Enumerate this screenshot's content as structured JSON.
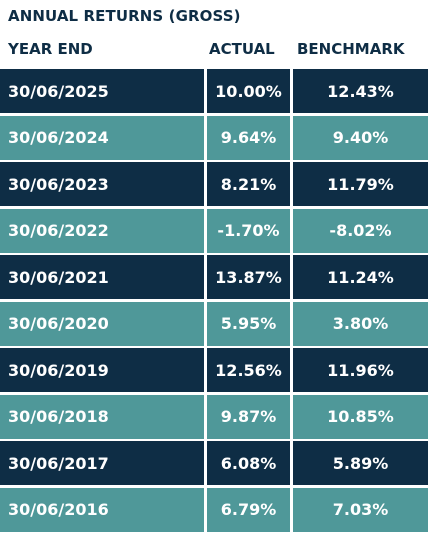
{
  "title": "ANNUAL RETURNS (GROSS)",
  "columns": {
    "year_end": "YEAR END",
    "actual": "ACTUAL",
    "benchmark": "BENCHMARK"
  },
  "colors": {
    "dark_row": "#0e2d45",
    "light_row": "#4f9899",
    "header_text": "#0e2d45",
    "cell_text": "#ffffff"
  },
  "rows": [
    {
      "year_end": "30/06/2025",
      "actual": "10.00%",
      "benchmark": "12.43%"
    },
    {
      "year_end": "30/06/2024",
      "actual": "9.64%",
      "benchmark": "9.40%"
    },
    {
      "year_end": "30/06/2023",
      "actual": "8.21%",
      "benchmark": "11.79%"
    },
    {
      "year_end": "30/06/2022",
      "actual": "-1.70%",
      "benchmark": "-8.02%"
    },
    {
      "year_end": "30/06/2021",
      "actual": "13.87%",
      "benchmark": "11.24%"
    },
    {
      "year_end": "30/06/2020",
      "actual": "5.95%",
      "benchmark": "3.80%"
    },
    {
      "year_end": "30/06/2019",
      "actual": "12.56%",
      "benchmark": "11.96%"
    },
    {
      "year_end": "30/06/2018",
      "actual": "9.87%",
      "benchmark": "10.85%"
    },
    {
      "year_end": "30/06/2017",
      "actual": "6.08%",
      "benchmark": "5.89%"
    },
    {
      "year_end": "30/06/2016",
      "actual": "6.79%",
      "benchmark": "7.03%"
    }
  ]
}
